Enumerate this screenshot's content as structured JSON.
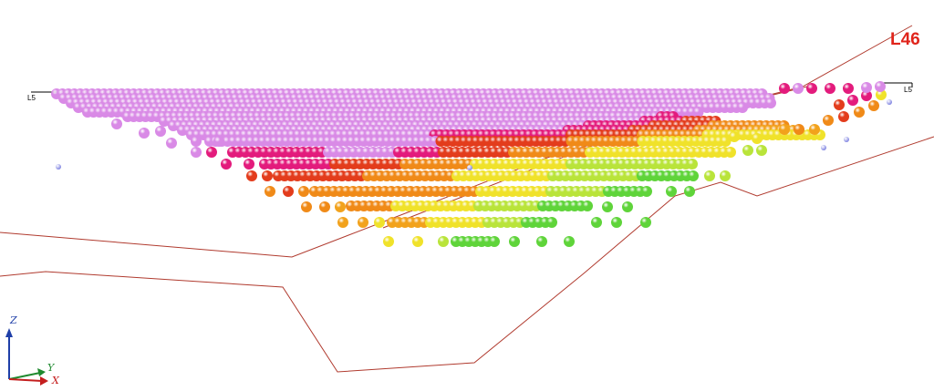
{
  "section_label": "L46",
  "level_label_left": "L5",
  "level_label_right": "L5",
  "axes": {
    "z": "Z",
    "y": "Y",
    "x": "X"
  },
  "colors": {
    "background": "#ffffff",
    "outline": "#b03a2e",
    "section_label": "#e0241b",
    "axis_z": "#1f3fa8",
    "axis_y": "#1f8a2f",
    "axis_x": "#c41e1e",
    "stray_point": "#7b7fe0"
  },
  "legend_palette": [
    "#d98ae6",
    "#e31b7c",
    "#e33c1c",
    "#f08a18",
    "#f2b81c",
    "#f0e62a",
    "#b9e43a",
    "#6fd83a",
    "#38c43a"
  ],
  "bench_rows": [
    {
      "grades": [
        "violet"
      ]
    },
    {
      "grades": [
        "violet",
        "magenta",
        "red"
      ]
    },
    {
      "grades": [
        "violet",
        "magenta",
        "red",
        "orange"
      ]
    },
    {
      "grades": [
        "violet",
        "magenta",
        "red",
        "orange",
        "yellow"
      ]
    },
    {
      "grades": [
        "magenta",
        "red",
        "orange",
        "yellow",
        "lime"
      ]
    },
    {
      "grades": [
        "red",
        "orange",
        "yellow",
        "lime"
      ]
    },
    {
      "grades": [
        "orange",
        "yellow",
        "lime",
        "green"
      ]
    },
    {
      "grades": [
        "orange",
        "yellow",
        "lime",
        "green"
      ]
    },
    {
      "grades": [
        "amber",
        "yellow",
        "lime",
        "green"
      ]
    },
    {
      "grades": [
        "yellow",
        "lime",
        "green"
      ]
    }
  ]
}
